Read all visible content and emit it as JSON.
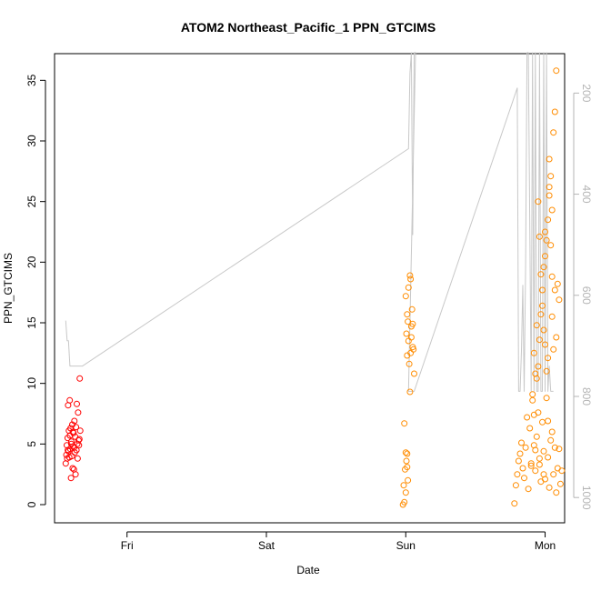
{
  "chart_data": {
    "type": "scatter",
    "title": "ATOM2 Northeast_Pacific_1 PPN_GTCIMS",
    "xlabel": "Date",
    "ylabel": "PPN_GTCIMS",
    "x_ticks": [
      "Fri",
      "Sat",
      "Sun",
      "Mon"
    ],
    "x_unit": "days after Thu 00:00",
    "x_range": [
      0.48,
      4.14
    ],
    "ylim": [
      -1.5,
      37.2
    ],
    "y_ticks": [
      0,
      5,
      10,
      15,
      20,
      25,
      30,
      35
    ],
    "right_axis": {
      "label_color": "#b4b4b4",
      "range_top_to_bottom": [
        122,
        1050
      ],
      "ticks": [
        200,
        400,
        600,
        800,
        1000
      ],
      "reversed": true
    },
    "grid": false,
    "legend": "none",
    "series": [
      {
        "color": "#ff0000",
        "marker": "open-circle",
        "points": [
          [
            0.56,
            3.4
          ],
          [
            0.565,
            4.1
          ],
          [
            0.568,
            4.9
          ],
          [
            0.571,
            3.8
          ],
          [
            0.574,
            5.5
          ],
          [
            0.577,
            8.2
          ],
          [
            0.58,
            4.4
          ],
          [
            0.583,
            6.1
          ],
          [
            0.586,
            3.9
          ],
          [
            0.589,
            8.6
          ],
          [
            0.592,
            4.6
          ],
          [
            0.595,
            6.3
          ],
          [
            0.598,
            2.2
          ],
          [
            0.601,
            5.2
          ],
          [
            0.604,
            4.0
          ],
          [
            0.607,
            6.6
          ],
          [
            0.61,
            3.0
          ],
          [
            0.613,
            4.8
          ],
          [
            0.616,
            5.9
          ],
          [
            0.619,
            2.9
          ],
          [
            0.622,
            6.9
          ],
          [
            0.625,
            4.3
          ],
          [
            0.628,
            5.6
          ],
          [
            0.631,
            2.5
          ],
          [
            0.634,
            6.4
          ],
          [
            0.637,
            4.5
          ],
          [
            0.64,
            8.3
          ],
          [
            0.643,
            5.0
          ],
          [
            0.646,
            3.8
          ],
          [
            0.649,
            7.6
          ],
          [
            0.652,
            5.3
          ],
          [
            0.655,
            4.9
          ],
          [
            0.658,
            5.4
          ],
          [
            0.661,
            10.4
          ],
          [
            0.664,
            6.1
          ],
          [
            0.59,
            5.7
          ],
          [
            0.6,
            5.0
          ],
          [
            0.62,
            4.7
          ],
          [
            0.575,
            4.5
          ],
          [
            0.612,
            6.0
          ]
        ]
      },
      {
        "color": "#ff8c00",
        "marker": "open-circle",
        "points": [
          [
            2.98,
            0.0
          ],
          [
            2.985,
            1.6
          ],
          [
            2.99,
            0.2
          ],
          [
            2.995,
            2.9
          ],
          [
            3.0,
            4.3
          ],
          [
            3.005,
            3.6
          ],
          [
            3.01,
            4.2
          ],
          [
            3.015,
            2.0
          ],
          [
            2.99,
            6.7
          ],
          [
            3.0,
            17.2
          ],
          [
            3.005,
            14.1
          ],
          [
            3.01,
            12.3
          ],
          [
            3.015,
            15.1
          ],
          [
            3.02,
            13.5
          ],
          [
            3.025,
            11.6
          ],
          [
            3.03,
            9.3
          ],
          [
            3.035,
            18.6
          ],
          [
            3.04,
            14.7
          ],
          [
            3.045,
            16.1
          ],
          [
            3.05,
            13.0
          ],
          [
            3.055,
            12.8
          ],
          [
            3.06,
            10.8
          ],
          [
            3.01,
            15.7
          ],
          [
            3.02,
            17.9
          ],
          [
            3.03,
            18.9
          ],
          [
            3.04,
            13.8
          ],
          [
            3.05,
            14.9
          ],
          [
            3.035,
            12.5
          ],
          [
            3.0,
            1.0
          ],
          [
            3.01,
            3.1
          ],
          [
            3.78,
            0.1
          ],
          [
            3.79,
            1.6
          ],
          [
            3.8,
            2.5
          ],
          [
            3.81,
            3.6
          ],
          [
            3.82,
            4.2
          ],
          [
            3.83,
            5.1
          ],
          [
            3.84,
            3.0
          ],
          [
            3.85,
            2.2
          ],
          [
            3.86,
            4.7
          ],
          [
            3.87,
            7.2
          ],
          [
            3.88,
            1.3
          ],
          [
            3.89,
            6.3
          ],
          [
            3.9,
            3.4
          ],
          [
            3.91,
            8.6
          ],
          [
            3.92,
            4.9
          ],
          [
            3.93,
            2.8
          ],
          [
            3.94,
            5.6
          ],
          [
            3.95,
            7.6
          ],
          [
            3.96,
            3.3
          ],
          [
            3.97,
            1.9
          ],
          [
            3.98,
            6.8
          ],
          [
            3.99,
            4.4
          ],
          [
            4.0,
            2.1
          ],
          [
            4.01,
            8.8
          ],
          [
            4.02,
            3.9
          ],
          [
            4.03,
            1.4
          ],
          [
            4.04,
            5.3
          ],
          [
            4.05,
            6.0
          ],
          [
            4.06,
            2.5
          ],
          [
            4.07,
            4.7
          ],
          [
            4.08,
            1.0
          ],
          [
            4.09,
            3.0
          ],
          [
            4.1,
            4.6
          ],
          [
            4.11,
            1.7
          ],
          [
            4.12,
            2.8
          ],
          [
            3.92,
            12.5
          ],
          [
            3.93,
            10.8
          ],
          [
            3.94,
            14.8
          ],
          [
            3.95,
            11.4
          ],
          [
            3.96,
            13.6
          ],
          [
            3.97,
            15.7
          ],
          [
            3.98,
            16.4
          ],
          [
            3.99,
            19.6
          ],
          [
            4.0,
            20.5
          ],
          [
            4.01,
            21.8
          ],
          [
            4.02,
            23.5
          ],
          [
            4.03,
            25.5
          ],
          [
            4.04,
            27.1
          ],
          [
            4.05,
            24.3
          ],
          [
            4.06,
            30.7
          ],
          [
            4.07,
            32.4
          ],
          [
            4.08,
            35.8
          ],
          [
            4.09,
            18.2
          ],
          [
            4.1,
            16.9
          ],
          [
            3.95,
            25.0
          ],
          [
            3.96,
            22.1
          ],
          [
            3.97,
            19.0
          ],
          [
            3.98,
            17.7
          ],
          [
            3.99,
            14.4
          ],
          [
            4.0,
            13.2
          ],
          [
            4.01,
            11.0
          ],
          [
            4.02,
            12.1
          ],
          [
            4.03,
            26.2
          ],
          [
            4.04,
            21.4
          ],
          [
            4.05,
            15.5
          ],
          [
            4.06,
            12.8
          ],
          [
            3.91,
            9.1
          ],
          [
            3.92,
            7.4
          ],
          [
            3.94,
            10.4
          ],
          [
            4.07,
            17.7
          ],
          [
            4.08,
            13.8
          ],
          [
            4.03,
            28.5
          ],
          [
            4.05,
            18.8
          ],
          [
            4.0,
            22.5
          ],
          [
            3.9,
            3.2
          ],
          [
            3.93,
            4.5
          ],
          [
            3.96,
            3.8
          ],
          [
            3.99,
            2.5
          ],
          [
            4.02,
            6.9
          ]
        ]
      }
    ],
    "background_trace": {
      "color": "#c8c8c8",
      "axis": "right",
      "points": [
        [
          0.56,
          650
        ],
        [
          0.57,
          690
        ],
        [
          0.58,
          690
        ],
        [
          0.59,
          740
        ],
        [
          0.66,
          740
        ],
        [
          0.68,
          740
        ],
        [
          3.02,
          310
        ],
        [
          3.03,
          160
        ],
        [
          3.04,
          120
        ],
        [
          3.05,
          480
        ],
        [
          3.06,
          120
        ],
        [
          3.07,
          120
        ],
        [
          3.02,
          790
        ],
        [
          3.06,
          790
        ],
        [
          3.8,
          190
        ],
        [
          3.81,
          790
        ],
        [
          3.82,
          790
        ],
        [
          3.83,
          710
        ],
        [
          3.84,
          580
        ],
        [
          3.85,
          790
        ],
        [
          3.86,
          540
        ],
        [
          3.87,
          120
        ],
        [
          3.88,
          120
        ],
        [
          3.9,
          790
        ],
        [
          3.91,
          120
        ],
        [
          3.92,
          790
        ],
        [
          3.93,
          120
        ],
        [
          3.94,
          790
        ],
        [
          3.95,
          790
        ],
        [
          3.96,
          120
        ],
        [
          3.97,
          790
        ],
        [
          3.98,
          790
        ],
        [
          3.99,
          120
        ],
        [
          4.0,
          790
        ],
        [
          4.01,
          120
        ],
        [
          4.02,
          790
        ],
        [
          4.03,
          740
        ],
        [
          4.04,
          790
        ],
        [
          4.06,
          790
        ]
      ]
    }
  }
}
